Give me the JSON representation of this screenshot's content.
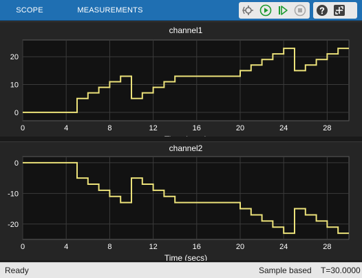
{
  "toolstrip": {
    "tabs": [
      "SCOPE",
      "MEASUREMENTS"
    ],
    "buttons": [
      "step-back",
      "run",
      "step-forward",
      "stop",
      "help",
      "expand"
    ]
  },
  "plots": [
    {
      "title": "channel1",
      "xlabel": "Time (secs)",
      "xticks": [
        "0",
        "4",
        "8",
        "12",
        "16",
        "20",
        "24",
        "28"
      ],
      "yticks": [
        "0",
        "10",
        "20"
      ]
    },
    {
      "title": "channel2",
      "xlabel": "Time (secs)",
      "xticks": [
        "0",
        "4",
        "8",
        "12",
        "16",
        "20",
        "24",
        "28"
      ],
      "yticks": [
        "0",
        "-10",
        "-20"
      ]
    }
  ],
  "status": {
    "state": "Ready",
    "mode": "Sample based",
    "time": "T=30.0000"
  },
  "colors": {
    "toolstrip": "#1f6fb2",
    "axes_bg": "#121212",
    "grid": "#3b3b3b",
    "line": "#ece27a",
    "text": "#ffffff"
  },
  "chart_data": [
    {
      "type": "line",
      "title": "channel1",
      "xlabel": "Time (secs)",
      "ylabel": "",
      "xlim": [
        0,
        30
      ],
      "ylim": [
        -3,
        26
      ],
      "grid": true,
      "step": true,
      "x": [
        0,
        5,
        6,
        7,
        8,
        9,
        10,
        11,
        12,
        13,
        14,
        15,
        16,
        17,
        18,
        19,
        20,
        21,
        22,
        23,
        24,
        25,
        26,
        27,
        28,
        29,
        30
      ],
      "y": [
        0,
        5,
        7,
        9,
        11,
        13,
        5,
        7,
        9,
        11,
        13,
        13,
        13,
        13,
        13,
        13,
        15,
        17,
        19,
        21,
        23,
        15,
        17,
        19,
        21,
        23,
        23
      ]
    },
    {
      "type": "line",
      "title": "channel2",
      "xlabel": "Time (secs)",
      "ylabel": "",
      "xlim": [
        0,
        30
      ],
      "ylim": [
        -25,
        2
      ],
      "grid": true,
      "step": true,
      "x": [
        0,
        5,
        6,
        7,
        8,
        9,
        10,
        11,
        12,
        13,
        14,
        15,
        16,
        17,
        18,
        19,
        20,
        21,
        22,
        23,
        24,
        25,
        26,
        27,
        28,
        29,
        30
      ],
      "y": [
        0,
        -5,
        -7,
        -9,
        -11,
        -13,
        -5,
        -7,
        -9,
        -11,
        -13,
        -13,
        -13,
        -13,
        -13,
        -13,
        -15,
        -17,
        -19,
        -21,
        -23,
        -15,
        -17,
        -19,
        -21,
        -23,
        -23
      ]
    }
  ]
}
